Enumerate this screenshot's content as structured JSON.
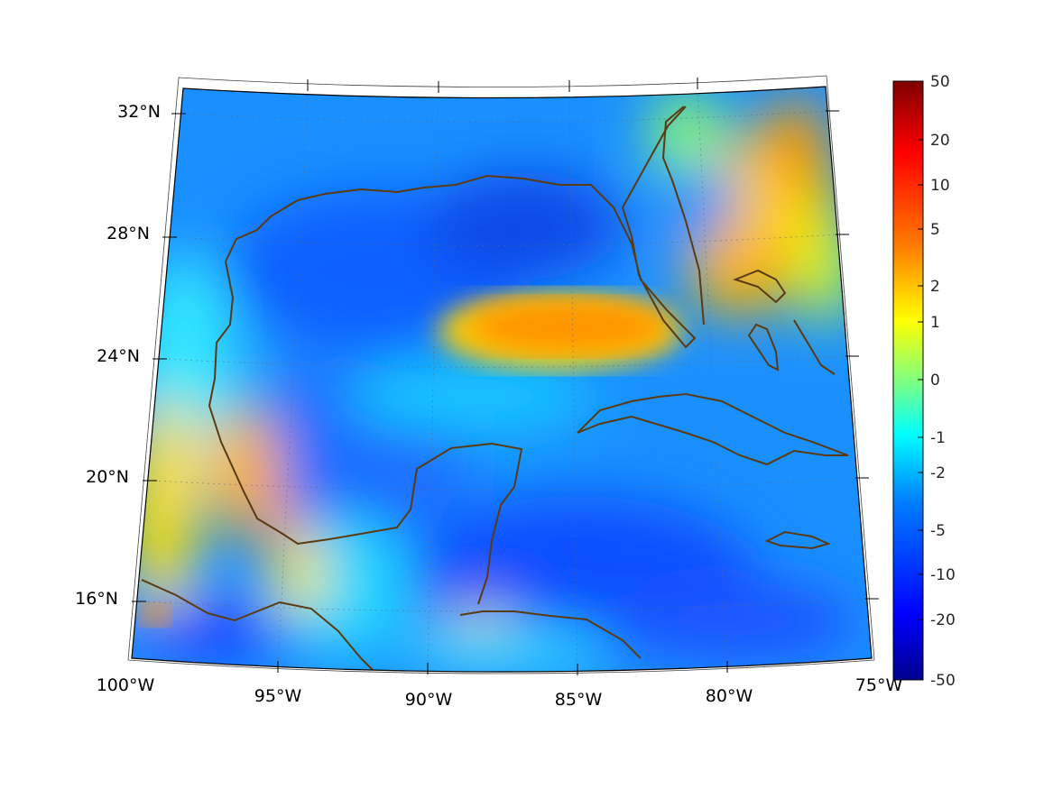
{
  "map": {
    "region": "Gulf of Mexico and Caribbean",
    "projection": "conic",
    "lon_range": [
      -100,
      -75
    ],
    "lat_range": [
      14,
      33
    ],
    "lon_ticks": [
      {
        "value": -100,
        "label": "100°W"
      },
      {
        "value": -95,
        "label": "95°W"
      },
      {
        "value": -90,
        "label": "90°W"
      },
      {
        "value": -85,
        "label": "85°W"
      },
      {
        "value": -80,
        "label": "80°W"
      },
      {
        "value": -75,
        "label": "75°W"
      }
    ],
    "lat_ticks": [
      {
        "value": 32,
        "label": "32°N"
      },
      {
        "value": 28,
        "label": "28°N"
      },
      {
        "value": 24,
        "label": "24°N"
      },
      {
        "value": 20,
        "label": "20°N"
      },
      {
        "value": 16,
        "label": "16°N"
      }
    ],
    "grid": true,
    "coastline_color": "#5a3a12"
  },
  "colorbar": {
    "labels": [
      "50",
      "20",
      "10",
      "5",
      "2",
      "1",
      "0",
      "-1",
      "-2",
      "-5",
      "-10",
      "-20",
      "-50"
    ],
    "colormap": "jet",
    "colors": [
      "#00008f",
      "#0000ff",
      "#0080ff",
      "#00ffff",
      "#80ff80",
      "#ffff00",
      "#ff8000",
      "#ff0000",
      "#800000"
    ]
  }
}
